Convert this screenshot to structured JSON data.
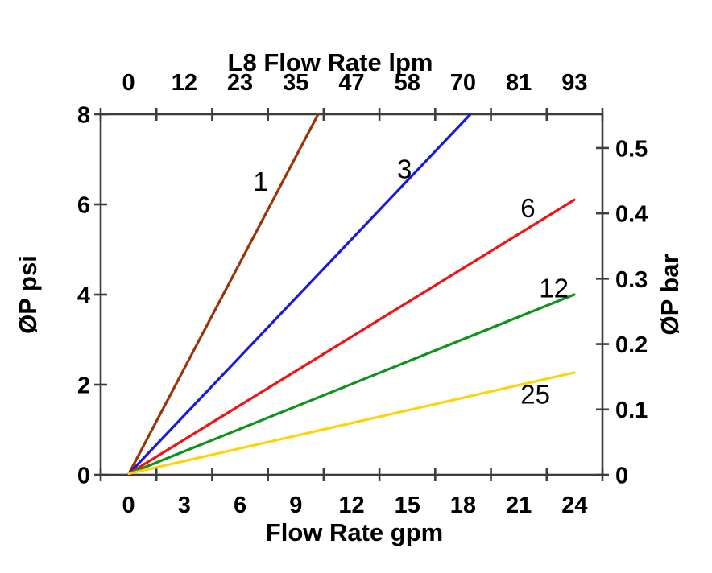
{
  "page": {
    "background": "#ffffff",
    "axis_color": "#3d3d3d",
    "text_color": "#000000"
  },
  "chart_data": {
    "type": "line",
    "title_top": "L8 Flow Rate lpm",
    "xlabel_bottom": "Flow Rate gpm",
    "ylabel_left": "ØP psi",
    "ylabel_right": "ØP bar",
    "x_bottom": {
      "unit": "gpm",
      "range": [
        0,
        24
      ],
      "tick_labels": [
        "0",
        "3",
        "6",
        "9",
        "12",
        "15",
        "18",
        "21",
        "24"
      ],
      "tick_values": [
        0,
        3,
        6,
        9,
        12,
        15,
        18,
        21,
        24
      ],
      "labels_between_tick_marks": true
    },
    "x_top": {
      "unit": "lpm",
      "range": [
        0,
        93
      ],
      "tick_labels": [
        "0",
        "12",
        "23",
        "35",
        "47",
        "58",
        "70",
        "81",
        "93"
      ],
      "tick_values": [
        0,
        12,
        23,
        35,
        47,
        58,
        70,
        81,
        93
      ],
      "labels_between_tick_marks": true
    },
    "y_left": {
      "unit": "psi",
      "range": [
        0,
        8
      ],
      "tick_labels": [
        "8",
        "6",
        "4",
        "2",
        "0"
      ],
      "tick_values": [
        8,
        6,
        4,
        2,
        0
      ]
    },
    "y_right": {
      "unit": "bar",
      "range": [
        0,
        0.55
      ],
      "tick_labels": [
        "0.5",
        "0.4",
        "0.3",
        "0.2",
        "0.1",
        "0"
      ],
      "tick_values": [
        0.5,
        0.4,
        0.3,
        0.2,
        0.1,
        0
      ],
      "bar_per_psi": 0.0689476
    },
    "grid": false,
    "legend": "inline-labels",
    "series": [
      {
        "name": "1",
        "color": "#9A3408",
        "points_gpm_psi": [
          [
            0,
            0
          ],
          [
            10.2,
            8.0
          ]
        ],
        "label_at_gpm_psi": [
          7.1,
          6.52
        ]
      },
      {
        "name": "3",
        "color": "#1A1AD8",
        "points_gpm_psi": [
          [
            0,
            0
          ],
          [
            18.4,
            8.0
          ]
        ],
        "label_at_gpm_psi": [
          14.85,
          6.79
        ]
      },
      {
        "name": "6",
        "color": "#EE1414",
        "points_gpm_psi": [
          [
            0,
            0
          ],
          [
            24.0,
            6.1
          ]
        ],
        "label_at_gpm_psi": [
          21.5,
          5.93
        ]
      },
      {
        "name": "12",
        "color": "#0E9419",
        "points_gpm_psi": [
          [
            0,
            0
          ],
          [
            24.0,
            4.0
          ]
        ],
        "label_at_gpm_psi": [
          22.9,
          4.15
        ]
      },
      {
        "name": "25",
        "color": "#FFD30A",
        "points_gpm_psi": [
          [
            0,
            0
          ],
          [
            24.0,
            2.27
          ]
        ],
        "label_at_gpm_psi": [
          21.9,
          1.79
        ]
      }
    ]
  }
}
